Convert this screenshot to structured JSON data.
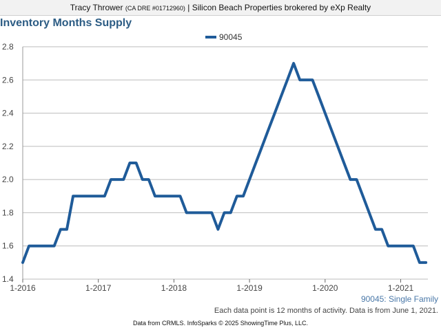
{
  "header": {
    "agent": "Tracy Thrower",
    "license": "(CA DRE #01712960)",
    "separator": "|",
    "brokerage": "Silicon Beach Properties brokered by eXp Realty"
  },
  "note": "Each data point is 12 months of activity. Data is from June 1, 2021.",
  "footer": "Data from CRMLS. InfoSparks © 2025 ShowingTime Plus, LLC.",
  "series_caption": "90045: Single Family",
  "colors": {
    "series": "#1f5b99",
    "title": "#2c5c84",
    "grid": "#bbbbbb"
  },
  "chart_data": {
    "type": "line",
    "title": "Inventory Months Supply",
    "xlabel": "",
    "ylabel": "",
    "ylim": [
      1.4,
      2.8
    ],
    "yticks": [
      "1.4",
      "1.6",
      "1.8",
      "2.0",
      "2.2",
      "2.4",
      "2.6",
      "2.8"
    ],
    "xticks": [
      "1-2016",
      "1-2017",
      "1-2018",
      "1-2019",
      "1-2020",
      "1-2021"
    ],
    "grid": true,
    "legend": "top-center",
    "x": [
      "2016-01",
      "2016-02",
      "2016-03",
      "2016-04",
      "2016-05",
      "2016-06",
      "2016-07",
      "2016-08",
      "2016-09",
      "2016-10",
      "2016-11",
      "2016-12",
      "2017-01",
      "2017-02",
      "2017-03",
      "2017-04",
      "2017-05",
      "2017-06",
      "2017-07",
      "2017-08",
      "2017-09",
      "2017-10",
      "2017-11",
      "2017-12",
      "2018-01",
      "2018-02",
      "2018-03",
      "2018-04",
      "2018-05",
      "2018-06",
      "2018-07",
      "2018-08",
      "2018-09",
      "2018-10",
      "2018-11",
      "2018-12",
      "2019-01",
      "2019-02",
      "2019-03",
      "2019-04",
      "2019-05",
      "2019-06",
      "2019-07",
      "2019-08",
      "2019-09",
      "2019-10",
      "2019-11",
      "2019-12",
      "2020-01",
      "2020-02",
      "2020-03",
      "2020-04",
      "2020-05",
      "2020-06",
      "2020-07",
      "2020-08",
      "2020-09",
      "2020-10",
      "2020-11",
      "2020-12",
      "2021-01",
      "2021-02",
      "2021-03",
      "2021-04",
      "2021-05"
    ],
    "series": [
      {
        "name": "90045",
        "values": [
          1.5,
          1.6,
          1.6,
          1.6,
          1.6,
          1.6,
          1.7,
          1.7,
          1.9,
          1.9,
          1.9,
          1.9,
          1.9,
          1.9,
          2.0,
          2.0,
          2.0,
          2.1,
          2.1,
          2.0,
          2.0,
          1.9,
          1.9,
          1.9,
          1.9,
          1.9,
          1.8,
          1.8,
          1.8,
          1.8,
          1.8,
          1.7,
          1.8,
          1.8,
          1.9,
          1.9,
          2.0,
          2.1,
          2.2,
          2.3,
          2.4,
          2.5,
          2.6,
          2.7,
          2.6,
          2.6,
          2.6,
          2.5,
          2.4,
          2.3,
          2.2,
          2.1,
          2.0,
          2.0,
          1.9,
          1.8,
          1.7,
          1.7,
          1.6,
          1.6,
          1.6,
          1.6,
          1.6,
          1.5,
          1.5
        ]
      }
    ]
  }
}
